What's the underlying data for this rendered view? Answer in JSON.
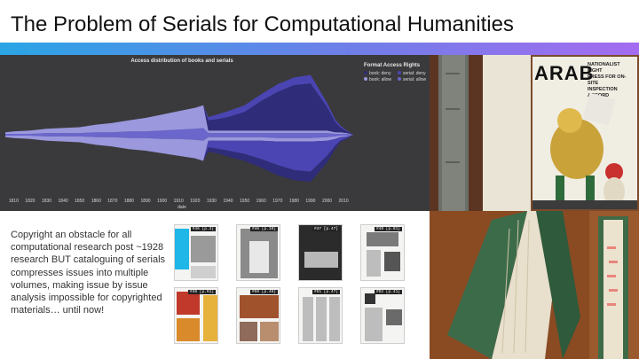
{
  "slide": {
    "title": "The Problem of Serials for Computational Humanities",
    "body_text": "Copyright an obstacle for all computational research post ~1928 research BUT cataloguing of serials compresses issues into multiple volumes, making issue by issue analysis impossible for copyrighted materials… until now!"
  },
  "colors": {
    "accent_gradient": [
      "#2aa5e6",
      "#6f7ee8",
      "#a46cf0"
    ],
    "chart_background": "#3a3a3c",
    "book_deny": "#2f2c7a",
    "book_allow": "#9b98de",
    "serial_deny": "#4a45b2",
    "serial_allow": "#6a66cc"
  },
  "chart_data": {
    "type": "area",
    "title": "Access distribution of books and serials",
    "xlabel": "date",
    "ylabel": "",
    "x_ticks": [
      "1810",
      "1820",
      "1830",
      "1840",
      "1850",
      "1860",
      "1870",
      "1880",
      "1890",
      "1900",
      "1910",
      "1920",
      "1930",
      "1940",
      "1950",
      "1960",
      "1970",
      "1980",
      "1990",
      "2000",
      "2010"
    ],
    "xlim": [
      1805,
      2018
    ],
    "legend": {
      "title": "Format Access Rights",
      "placement": "right",
      "items": [
        "book: deny",
        "book: allow",
        "serial: deny",
        "serial: allow"
      ]
    },
    "x": [
      1805,
      1810,
      1820,
      1830,
      1840,
      1850,
      1860,
      1870,
      1880,
      1890,
      1900,
      1910,
      1920,
      1925,
      1928,
      1935,
      1940,
      1950,
      1960,
      1970,
      1980,
      1990,
      2000,
      2005,
      2008,
      2012,
      2016,
      2018
    ],
    "upper": {
      "serial_deny": [
        0,
        0,
        0,
        0,
        0,
        0,
        0,
        0,
        0,
        0,
        0,
        0,
        0,
        0,
        4,
        6,
        7,
        8,
        8,
        9,
        9,
        10,
        5,
        3,
        2,
        1,
        0,
        0
      ],
      "book_deny": [
        0,
        0,
        0,
        0,
        0,
        0,
        0,
        0,
        0,
        0,
        0,
        0,
        0,
        0,
        12,
        14,
        16,
        22,
        35,
        46,
        54,
        56,
        28,
        12,
        6,
        2,
        0,
        0
      ],
      "book_allow": [
        2,
        3,
        4,
        5,
        6,
        7,
        9,
        11,
        13,
        16,
        19,
        22,
        25,
        27,
        3,
        3,
        3,
        3,
        3,
        3,
        3,
        3,
        3,
        2,
        2,
        1,
        0,
        0
      ],
      "serial_allow": [
        1,
        1,
        1,
        2,
        2,
        2,
        3,
        3,
        4,
        4,
        5,
        6,
        7,
        8,
        2,
        2,
        2,
        2,
        2,
        2,
        2,
        2,
        2,
        1,
        1,
        1,
        0,
        0
      ]
    },
    "lower": {
      "serial_allow": [
        1,
        1,
        1,
        2,
        2,
        2,
        3,
        3,
        4,
        4,
        5,
        5,
        6,
        7,
        3,
        3,
        3,
        3,
        3,
        4,
        4,
        4,
        3,
        2,
        1,
        1,
        0,
        0
      ],
      "book_allow": [
        2,
        3,
        4,
        5,
        6,
        7,
        9,
        11,
        13,
        15,
        17,
        20,
        22,
        24,
        4,
        4,
        4,
        4,
        4,
        4,
        4,
        4,
        4,
        3,
        2,
        1,
        0,
        0
      ],
      "serial_deny": [
        0,
        0,
        0,
        0,
        0,
        0,
        0,
        0,
        0,
        0,
        0,
        0,
        0,
        0,
        8,
        10,
        12,
        16,
        22,
        28,
        34,
        36,
        18,
        8,
        4,
        2,
        0,
        0
      ],
      "book_deny": [
        0,
        0,
        0,
        0,
        0,
        0,
        0,
        0,
        0,
        0,
        0,
        0,
        0,
        0,
        5,
        6,
        7,
        8,
        10,
        12,
        12,
        12,
        8,
        4,
        2,
        1,
        0,
        0
      ]
    }
  },
  "photos": [
    {
      "name": "bound-volume-spine-photo"
    },
    {
      "name": "arab-magazine-cover-photo",
      "text_lines": [
        "ARAB",
        "NATIONALIST FIGHT",
        "PRESS FOR ON-SITE",
        "INSPECTION ACCORD"
      ]
    },
    {
      "name": "bound-volumes-pages-photo"
    },
    {
      "name": "bound-volume-tabs-photo"
    }
  ],
  "thumbnails": [
    {
      "label": "#46 [p.3]"
    },
    {
      "label": "#46 [p.10]"
    },
    {
      "label": "#47 [p.47]"
    },
    {
      "label": "#49 [p.81]"
    },
    {
      "label": "#49 [p.51]"
    },
    {
      "label": "#50 [p.46]"
    },
    {
      "label": "#51 [p.47]"
    },
    {
      "label": "#52 [p.41]"
    }
  ]
}
